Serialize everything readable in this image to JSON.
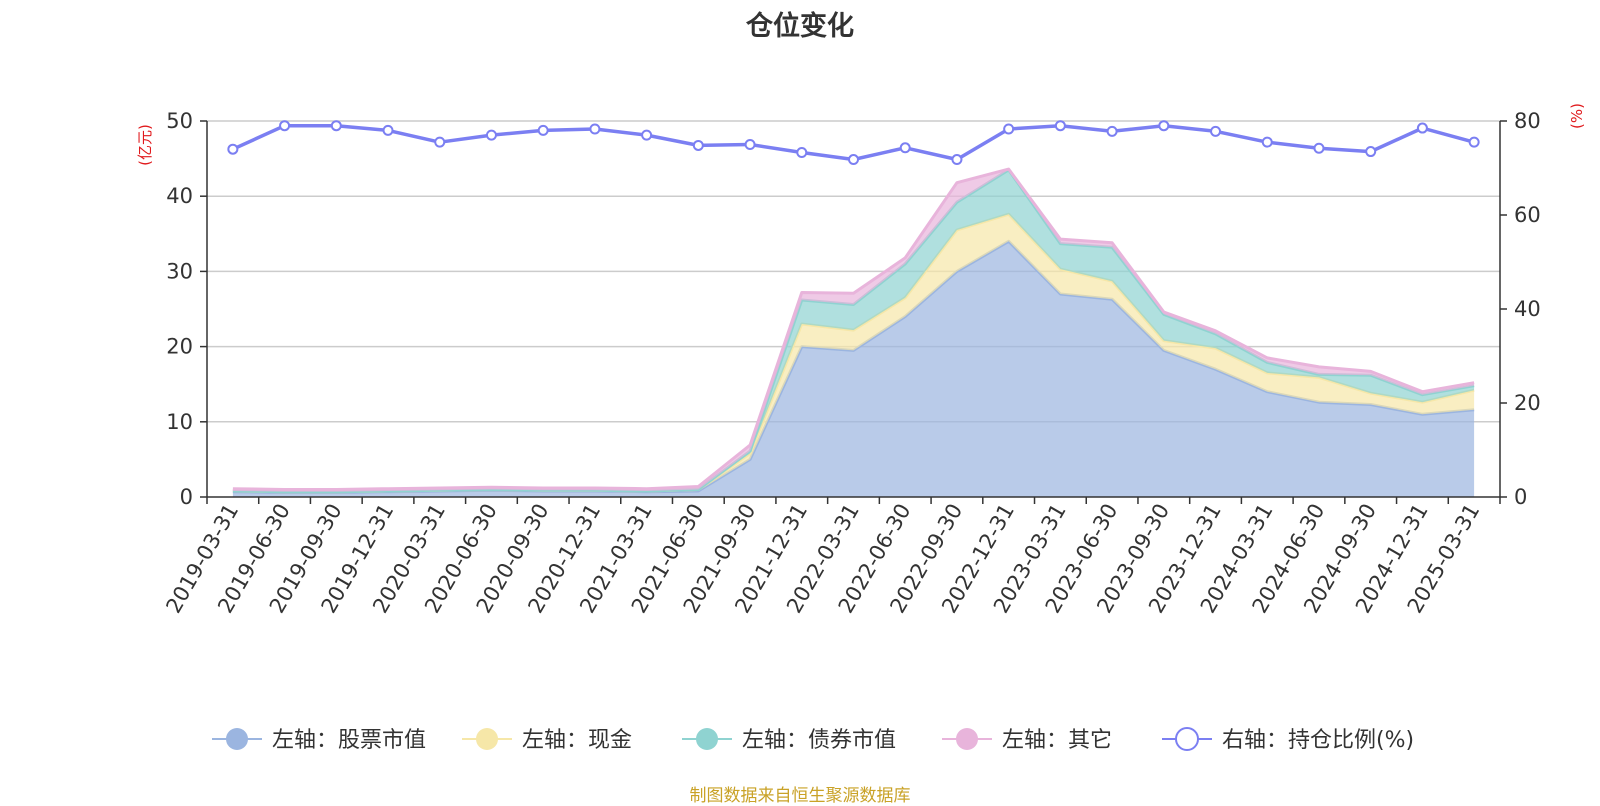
{
  "chart_data": {
    "type": "area",
    "title": "仓位变化",
    "x": [
      "2019-03-31",
      "2019-06-30",
      "2019-09-30",
      "2019-12-31",
      "2020-03-31",
      "2020-06-30",
      "2020-09-30",
      "2020-12-31",
      "2021-03-31",
      "2021-06-30",
      "2021-09-30",
      "2021-12-31",
      "2022-03-31",
      "2022-06-30",
      "2022-09-30",
      "2022-12-31",
      "2023-03-31",
      "2023-06-30",
      "2023-09-30",
      "2023-12-31",
      "2024-03-31",
      "2024-06-30",
      "2024-09-30",
      "2024-12-31",
      "2025-03-31"
    ],
    "left_axis": {
      "label": "(亿元)",
      "ylim": [
        0,
        50
      ],
      "ticks": [
        0,
        10,
        20,
        30,
        40,
        50
      ]
    },
    "right_axis": {
      "label": "(%)",
      "ylim": [
        0,
        80
      ],
      "ticks": [
        0,
        20,
        40,
        60,
        80
      ]
    },
    "grid": true,
    "legend_position": "bottom",
    "stacked": true,
    "series": [
      {
        "name": "左轴：股票市值",
        "type": "area",
        "axis": "left",
        "color": "#9bb5e0",
        "values": [
          0.7,
          0.6,
          0.6,
          0.7,
          0.8,
          0.9,
          0.8,
          0.8,
          0.7,
          0.8,
          5.0,
          20.0,
          19.5,
          24.0,
          30.0,
          34.0,
          27.0,
          26.3,
          19.5,
          17.0,
          14.0,
          12.6,
          12.3,
          11.0,
          11.6
        ]
      },
      {
        "name": "左轴：现金",
        "type": "area",
        "axis": "left",
        "color": "#f6e7a8",
        "values": [
          0.1,
          0.1,
          0.1,
          0.1,
          0.1,
          0.1,
          0.1,
          0.1,
          0.1,
          0.2,
          0.8,
          3.0,
          2.7,
          2.5,
          5.5,
          3.6,
          3.3,
          2.4,
          1.3,
          2.8,
          2.5,
          3.3,
          1.5,
          1.6,
          2.6
        ]
      },
      {
        "name": "左轴：债券市值",
        "type": "area",
        "axis": "left",
        "color": "#8fd3d1",
        "values": [
          0,
          0,
          0,
          0,
          0,
          0,
          0,
          0,
          0,
          0,
          0.3,
          3.2,
          3.4,
          4.5,
          3.7,
          5.9,
          3.4,
          4.5,
          3.5,
          1.9,
          1.4,
          0.4,
          2.4,
          1.0,
          0.6
        ]
      },
      {
        "name": "左轴：其它",
        "type": "area",
        "axis": "left",
        "color": "#e8b4db",
        "values": [
          0.3,
          0.3,
          0.3,
          0.3,
          0.3,
          0.3,
          0.3,
          0.3,
          0.3,
          0.4,
          0.8,
          1.0,
          1.5,
          0.8,
          2.6,
          0.1,
          0.6,
          0.6,
          0.3,
          0.4,
          0.6,
          1.0,
          0.5,
          0.4,
          0.4
        ]
      },
      {
        "name": "右轴：持仓比例(%)",
        "type": "line",
        "axis": "right",
        "color": "#7b7ff2",
        "values": [
          74.0,
          79.0,
          79.0,
          78.0,
          75.5,
          77.0,
          78.0,
          78.3,
          77.0,
          74.8,
          75.0,
          73.3,
          71.8,
          74.3,
          71.8,
          78.3,
          79.0,
          77.8,
          79.0,
          77.8,
          75.5,
          74.2,
          73.5,
          78.5,
          75.5
        ]
      }
    ]
  },
  "footer": {
    "source": "制图数据来自恒生聚源数据库"
  }
}
